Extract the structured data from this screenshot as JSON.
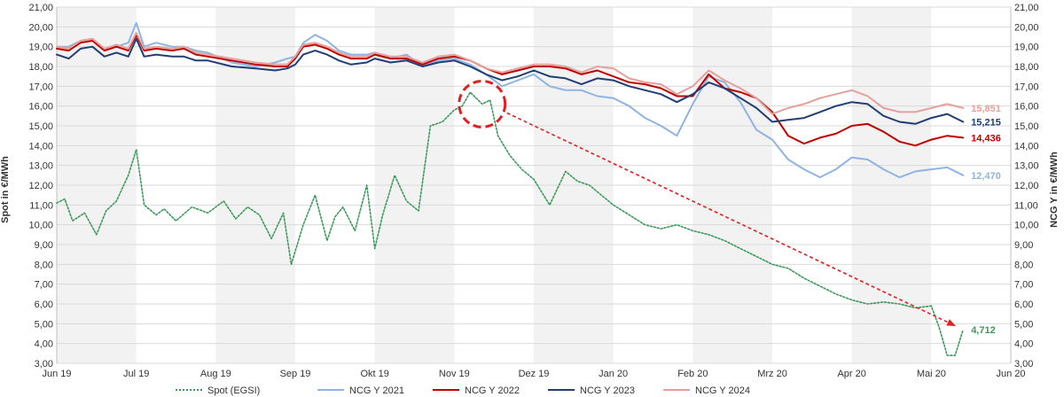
{
  "chart_data": {
    "type": "line",
    "ylabel_left": "Spot in €/MWh",
    "ylabel_right": "NCG Y in €/MWh",
    "ylim": [
      3,
      21
    ],
    "y_ticks": [
      "3,00",
      "4,00",
      "5,00",
      "6,00",
      "7,00",
      "8,00",
      "9,00",
      "10,00",
      "11,00",
      "12,00",
      "13,00",
      "14,00",
      "15,00",
      "16,00",
      "17,00",
      "18,00",
      "19,00",
      "20,00",
      "21,00"
    ],
    "x_range": [
      0,
      12
    ],
    "x_ticks": [
      "Jun 19",
      "Jul 19",
      "Aug 19",
      "Sep 19",
      "Okt 19",
      "Nov 19",
      "Dez 19",
      "Jan 20",
      "Feb 20",
      "Mrz 20",
      "Apr 20",
      "Mai 20",
      "Jun 20"
    ],
    "shaded_months": [
      0,
      2,
      4,
      6,
      8,
      10
    ],
    "grid": "horizontal",
    "legend_position": "bottom",
    "series": [
      {
        "name": "Spot (EGSI)",
        "color": "#3a9a5a",
        "dash": "2,2",
        "end_label": "4,712",
        "x": [
          0,
          0.1,
          0.2,
          0.35,
          0.5,
          0.62,
          0.75,
          0.9,
          1.0,
          1.1,
          1.25,
          1.35,
          1.5,
          1.7,
          1.9,
          2.1,
          2.25,
          2.4,
          2.55,
          2.7,
          2.85,
          2.95,
          3.1,
          3.25,
          3.4,
          3.5,
          3.6,
          3.75,
          3.9,
          4.0,
          4.1,
          4.25,
          4.4,
          4.55,
          4.7,
          4.85,
          5.0,
          5.1,
          5.2,
          5.35,
          5.45,
          5.55,
          5.7,
          5.85,
          6.0,
          6.2,
          6.4,
          6.55,
          6.7,
          6.85,
          7.0,
          7.2,
          7.4,
          7.6,
          7.8,
          8.0,
          8.2,
          8.4,
          8.6,
          8.8,
          9.0,
          9.2,
          9.4,
          9.6,
          9.8,
          10.0,
          10.2,
          10.4,
          10.6,
          10.8,
          11.0,
          11.1,
          11.2,
          11.3,
          11.4
        ],
        "y": [
          11.1,
          11.3,
          10.2,
          10.6,
          9.5,
          10.7,
          11.2,
          12.5,
          13.8,
          11.0,
          10.5,
          10.8,
          10.2,
          10.9,
          10.6,
          11.2,
          10.3,
          10.9,
          10.5,
          9.3,
          10.6,
          8.0,
          10.0,
          11.5,
          9.2,
          10.4,
          10.9,
          9.7,
          12.0,
          8.8,
          10.5,
          12.5,
          11.2,
          10.7,
          15.0,
          15.2,
          15.8,
          16.0,
          16.7,
          16.1,
          16.3,
          14.5,
          13.5,
          12.8,
          12.3,
          11.0,
          12.7,
          12.2,
          12.0,
          11.5,
          11.0,
          10.5,
          10.0,
          9.8,
          10.0,
          9.7,
          9.5,
          9.2,
          8.8,
          8.4,
          8.0,
          7.8,
          7.3,
          6.9,
          6.5,
          6.2,
          6.0,
          6.1,
          6.0,
          5.8,
          5.9,
          4.8,
          3.4,
          3.4,
          4.7
        ]
      },
      {
        "name": "NCG Y 2021",
        "color": "#8fb4e3",
        "dash": "",
        "end_label": "12,470",
        "x": [
          0,
          0.15,
          0.3,
          0.45,
          0.6,
          0.75,
          0.9,
          1.0,
          1.1,
          1.25,
          1.45,
          1.6,
          1.75,
          1.9,
          2.2,
          2.5,
          2.75,
          2.9,
          3.0,
          3.1,
          3.25,
          3.4,
          3.55,
          3.7,
          3.9,
          4.0,
          4.2,
          4.4,
          4.6,
          4.8,
          5.0,
          5.2,
          5.4,
          5.6,
          5.8,
          6.0,
          6.2,
          6.4,
          6.6,
          6.8,
          7.0,
          7.2,
          7.4,
          7.6,
          7.8,
          8.0,
          8.2,
          8.4,
          8.6,
          8.8,
          9.0,
          9.2,
          9.4,
          9.6,
          9.8,
          10.0,
          10.2,
          10.4,
          10.6,
          10.8,
          11.0,
          11.2,
          11.4
        ],
        "y": [
          19.0,
          19.0,
          19.3,
          19.4,
          18.8,
          19.0,
          19.2,
          20.2,
          19.0,
          19.2,
          19.0,
          19.0,
          18.8,
          18.7,
          18.2,
          18.0,
          18.2,
          18.4,
          18.5,
          19.2,
          19.6,
          19.3,
          18.8,
          18.6,
          18.6,
          18.7,
          18.4,
          18.6,
          18.0,
          18.3,
          18.4,
          18.1,
          17.6,
          17.0,
          17.3,
          17.6,
          17.0,
          16.8,
          16.8,
          16.5,
          16.4,
          16.0,
          15.4,
          15.0,
          14.5,
          16.1,
          17.5,
          17.2,
          16.2,
          14.8,
          14.3,
          13.3,
          12.8,
          12.4,
          12.8,
          13.4,
          13.3,
          12.8,
          12.4,
          12.7,
          12.8,
          12.9,
          12.5
        ]
      },
      {
        "name": "NCG Y 2022",
        "color": "#c00000",
        "dash": "",
        "end_label": "14,436",
        "x": [
          0,
          0.15,
          0.3,
          0.45,
          0.6,
          0.75,
          0.9,
          1.0,
          1.1,
          1.25,
          1.45,
          1.6,
          1.75,
          1.9,
          2.2,
          2.5,
          2.75,
          2.9,
          3.0,
          3.1,
          3.25,
          3.4,
          3.55,
          3.7,
          3.9,
          4.0,
          4.2,
          4.4,
          4.6,
          4.8,
          5.0,
          5.2,
          5.4,
          5.6,
          5.8,
          6.0,
          6.2,
          6.4,
          6.6,
          6.8,
          7.0,
          7.2,
          7.4,
          7.6,
          7.8,
          8.0,
          8.2,
          8.4,
          8.6,
          8.8,
          9.0,
          9.2,
          9.4,
          9.6,
          9.8,
          10.0,
          10.2,
          10.4,
          10.6,
          10.8,
          11.0,
          11.2,
          11.4
        ],
        "y": [
          18.9,
          18.8,
          19.2,
          19.3,
          18.8,
          19.0,
          18.8,
          19.6,
          18.8,
          18.9,
          18.8,
          18.9,
          18.6,
          18.5,
          18.3,
          18.1,
          18.0,
          18.0,
          18.4,
          19.0,
          19.1,
          18.9,
          18.6,
          18.4,
          18.4,
          18.6,
          18.4,
          18.4,
          18.1,
          18.4,
          18.5,
          18.3,
          17.9,
          17.6,
          17.8,
          18.0,
          18.0,
          17.9,
          17.6,
          17.8,
          17.5,
          17.2,
          17.1,
          16.9,
          16.5,
          16.5,
          17.6,
          16.9,
          16.7,
          16.4,
          15.7,
          14.5,
          14.1,
          14.4,
          14.6,
          15.0,
          15.1,
          14.7,
          14.2,
          14.0,
          14.3,
          14.5,
          14.4
        ]
      },
      {
        "name": "NCG Y 2023",
        "color": "#1f3f73",
        "dash": "",
        "end_label": "15,215",
        "x": [
          0,
          0.15,
          0.3,
          0.45,
          0.6,
          0.75,
          0.9,
          1.0,
          1.1,
          1.25,
          1.45,
          1.6,
          1.75,
          1.9,
          2.2,
          2.5,
          2.75,
          2.9,
          3.0,
          3.1,
          3.25,
          3.4,
          3.55,
          3.7,
          3.9,
          4.0,
          4.2,
          4.4,
          4.6,
          4.8,
          5.0,
          5.2,
          5.4,
          5.6,
          5.8,
          6.0,
          6.2,
          6.4,
          6.6,
          6.8,
          7.0,
          7.2,
          7.4,
          7.6,
          7.8,
          8.0,
          8.2,
          8.4,
          8.6,
          8.8,
          9.0,
          9.2,
          9.4,
          9.6,
          9.8,
          10.0,
          10.2,
          10.4,
          10.6,
          10.8,
          11.0,
          11.2,
          11.4
        ],
        "y": [
          18.6,
          18.4,
          18.9,
          19.0,
          18.5,
          18.7,
          18.5,
          19.4,
          18.5,
          18.6,
          18.5,
          18.5,
          18.3,
          18.3,
          18.0,
          17.9,
          17.8,
          17.9,
          18.1,
          18.6,
          18.8,
          18.6,
          18.3,
          18.1,
          18.2,
          18.4,
          18.2,
          18.3,
          18.0,
          18.2,
          18.3,
          18.0,
          17.6,
          17.3,
          17.5,
          17.8,
          17.5,
          17.4,
          17.1,
          17.4,
          17.3,
          17.0,
          16.8,
          16.6,
          16.2,
          16.6,
          17.2,
          16.9,
          16.4,
          15.9,
          15.2,
          15.3,
          15.4,
          15.7,
          16.0,
          16.2,
          16.1,
          15.5,
          15.2,
          15.1,
          15.4,
          15.6,
          15.2
        ]
      },
      {
        "name": "NCG Y 2024",
        "color": "#e6a09a",
        "dash": "",
        "end_label": "15,851",
        "x": [
          0,
          0.15,
          0.3,
          0.45,
          0.6,
          0.75,
          0.9,
          1.0,
          1.1,
          1.25,
          1.45,
          1.6,
          1.75,
          1.9,
          2.2,
          2.5,
          2.75,
          2.9,
          3.0,
          3.1,
          3.25,
          3.4,
          3.55,
          3.7,
          3.9,
          4.0,
          4.2,
          4.4,
          4.6,
          4.8,
          5.0,
          5.2,
          5.4,
          5.6,
          5.8,
          6.0,
          6.2,
          6.4,
          6.6,
          6.8,
          7.0,
          7.2,
          7.4,
          7.6,
          7.8,
          8.0,
          8.2,
          8.4,
          8.6,
          8.8,
          9.0,
          9.2,
          9.4,
          9.6,
          9.8,
          10.0,
          10.2,
          10.4,
          10.6,
          10.8,
          11.0,
          11.2,
          11.4
        ],
        "y": [
          19.0,
          18.9,
          19.3,
          19.4,
          18.9,
          19.1,
          18.9,
          19.7,
          18.9,
          19.0,
          18.9,
          19.0,
          18.7,
          18.6,
          18.4,
          18.2,
          18.1,
          18.1,
          18.5,
          19.1,
          19.2,
          19.0,
          18.7,
          18.5,
          18.5,
          18.7,
          18.5,
          18.5,
          18.2,
          18.5,
          18.6,
          18.3,
          17.9,
          17.7,
          17.9,
          18.1,
          18.1,
          18.0,
          17.7,
          18.0,
          17.9,
          17.4,
          17.2,
          17.1,
          16.6,
          17.0,
          17.8,
          17.3,
          16.9,
          16.4,
          15.6,
          15.9,
          16.1,
          16.4,
          16.6,
          16.8,
          16.5,
          15.9,
          15.7,
          15.7,
          15.9,
          16.1,
          15.9
        ]
      }
    ],
    "annotation": {
      "circle_center": [
        5.35,
        16.1
      ],
      "arrow_to": [
        11.3,
        4.9
      ],
      "color": "#e02020"
    }
  }
}
